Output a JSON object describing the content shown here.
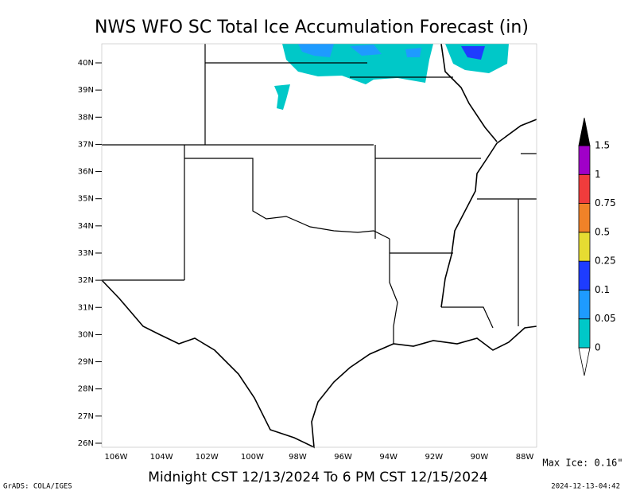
{
  "title": "NWS WFO SC Total Ice Accumulation Forecast (in)",
  "lat_ticks": [
    {
      "value": 40,
      "label": "40N"
    },
    {
      "value": 39,
      "label": "39N"
    },
    {
      "value": 38,
      "label": "38N"
    },
    {
      "value": 37,
      "label": "37N"
    },
    {
      "value": 36,
      "label": "36N"
    },
    {
      "value": 35,
      "label": "35N"
    },
    {
      "value": 34,
      "label": "34N"
    },
    {
      "value": 33,
      "label": "33N"
    },
    {
      "value": 32,
      "label": "32N"
    },
    {
      "value": 31,
      "label": "31N"
    },
    {
      "value": 30,
      "label": "30N"
    },
    {
      "value": 29,
      "label": "29N"
    },
    {
      "value": 28,
      "label": "28N"
    },
    {
      "value": 27,
      "label": "27N"
    },
    {
      "value": 26,
      "label": "26N"
    }
  ],
  "lon_ticks": [
    {
      "value": 106,
      "label": "106W"
    },
    {
      "value": 104,
      "label": "104W"
    },
    {
      "value": 102,
      "label": "102W"
    },
    {
      "value": 100,
      "label": "100W"
    },
    {
      "value": 98,
      "label": "98W"
    },
    {
      "value": 96,
      "label": "96W"
    },
    {
      "value": 94,
      "label": "94W"
    },
    {
      "value": 92,
      "label": "92W"
    },
    {
      "value": 90,
      "label": "90W"
    },
    {
      "value": 88,
      "label": "88W"
    }
  ],
  "colorbar": {
    "labels": [
      "0",
      "0.05",
      "0.1",
      "0.25",
      "0.5",
      "0.75",
      "1",
      "1.5"
    ],
    "colors": [
      "#ffffff",
      "#00c8c8",
      "#1e9bff",
      "#1e3cff",
      "#e6dc32",
      "#f08228",
      "#f03c3c",
      "#a000c8",
      "#000000"
    ]
  },
  "max_ice": "Max Ice: 0.16\"",
  "valid_period": "Midnight CST 12/13/2024 To 6 PM CST 12/15/2024",
  "credit": "GrADS: COLA/IGES",
  "timestamp": "2024-12-13-04:42"
}
